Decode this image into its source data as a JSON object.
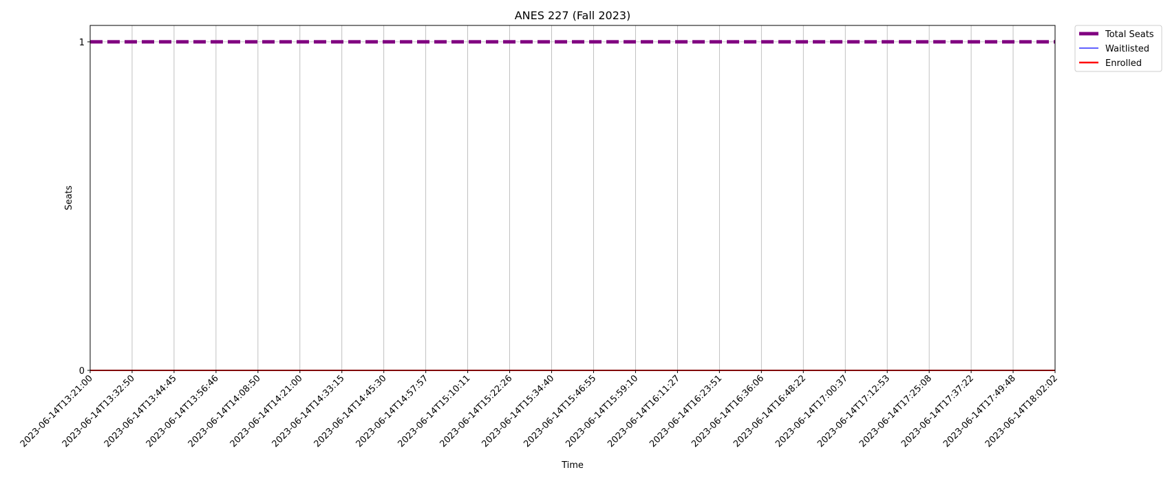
{
  "chart_data": {
    "type": "line",
    "title": "ANES 227 (Fall 2023)",
    "xlabel": "Time",
    "ylabel": "Seats",
    "x": [
      "2023-06-14T13:21:00",
      "2023-06-14T13:32:50",
      "2023-06-14T13:44:45",
      "2023-06-14T13:56:46",
      "2023-06-14T14:08:50",
      "2023-06-14T14:21:00",
      "2023-06-14T14:33:15",
      "2023-06-14T14:45:30",
      "2023-06-14T14:57:57",
      "2023-06-14T15:10:11",
      "2023-06-14T15:22:26",
      "2023-06-14T15:34:40",
      "2023-06-14T15:46:55",
      "2023-06-14T15:59:10",
      "2023-06-14T16:11:27",
      "2023-06-14T16:23:51",
      "2023-06-14T16:36:06",
      "2023-06-14T16:48:22",
      "2023-06-14T17:00:37",
      "2023-06-14T17:12:53",
      "2023-06-14T17:25:08",
      "2023-06-14T17:37:22",
      "2023-06-14T17:49:48",
      "2023-06-14T18:02:02"
    ],
    "y_ticks": [
      "0",
      "1"
    ],
    "ylim": [
      0,
      1.05
    ],
    "grid": true,
    "legend_position": "outside top-right",
    "series": [
      {
        "name": "Total Seats",
        "color": "#800080",
        "style": "dashed-thick",
        "values": [
          1,
          1,
          1,
          1,
          1,
          1,
          1,
          1,
          1,
          1,
          1,
          1,
          1,
          1,
          1,
          1,
          1,
          1,
          1,
          1,
          1,
          1,
          1,
          1
        ]
      },
      {
        "name": "Waitlisted",
        "color": "#0000ff",
        "style": "solid-thin",
        "values": [
          0,
          0,
          0,
          0,
          0,
          0,
          0,
          0,
          0,
          0,
          0,
          0,
          0,
          0,
          0,
          0,
          0,
          0,
          0,
          0,
          0,
          0,
          0,
          0
        ]
      },
      {
        "name": "Enrolled",
        "color": "#ff0000",
        "style": "solid",
        "values": [
          0,
          0,
          0,
          0,
          0,
          0,
          0,
          0,
          0,
          0,
          0,
          0,
          0,
          0,
          0,
          0,
          0,
          0,
          0,
          0,
          0,
          0,
          0,
          0
        ]
      }
    ]
  }
}
